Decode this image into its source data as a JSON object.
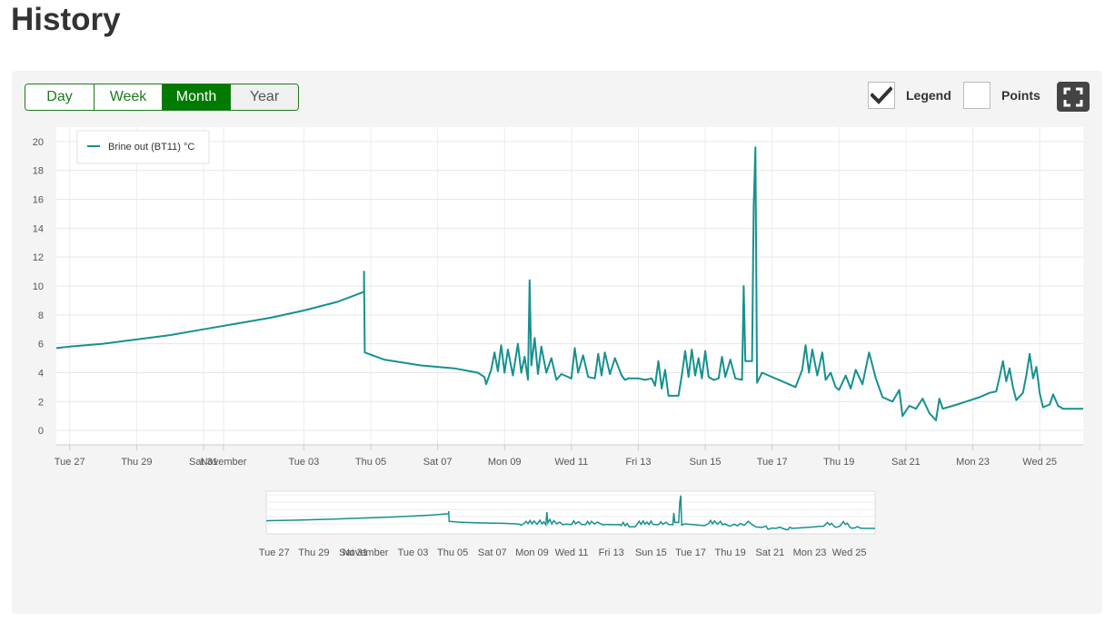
{
  "page": {
    "title": "History"
  },
  "range_buttons": [
    {
      "label": "Day"
    },
    {
      "label": "Week"
    },
    {
      "label": "Month"
    },
    {
      "label": "Year"
    }
  ],
  "active_range": "Month",
  "toggles": {
    "legend": {
      "label": "Legend",
      "checked": true
    },
    "points": {
      "label": "Points",
      "checked": false
    }
  },
  "fullscreen_icon": "fullscreen-icon",
  "colors": {
    "series": "#16918f",
    "active": "#007a00",
    "border": "#1d7a1d"
  },
  "chart_data": {
    "type": "line",
    "series": [
      {
        "name": "Brine out (BT11) °C"
      }
    ],
    "legend_position": "top-left",
    "grid": true,
    "ylim": [
      -1,
      21
    ],
    "y_ticks": [
      0,
      2,
      4,
      6,
      8,
      10,
      12,
      14,
      16,
      18,
      20
    ],
    "x_ticks": [
      "Tue 27",
      "Thu 29",
      "Sat 31",
      "November",
      "Tue 03",
      "Thu 05",
      "Sat 07",
      "Mon 09",
      "Wed 11",
      "Fri 13",
      "Sun 15",
      "Tue 17",
      "Thu 19",
      "Sat 21",
      "Mon 23",
      "Wed 25"
    ],
    "navigator_ticks": [
      "Tue 27",
      "Thu 29",
      "Sat 31",
      "November",
      "Tue 03",
      "Thu 05",
      "Sat 07",
      "Mon 09",
      "Wed 11",
      "Fri 13",
      "Sun 15",
      "Tue 17",
      "Thu 19",
      "Sat 21",
      "Mon 23",
      "Wed 25"
    ],
    "x_range_days": [
      -0.4,
      30.3
    ],
    "x_note": "days counted from Tue 27",
    "points": [
      [
        -0.4,
        5.7
      ],
      [
        0,
        5.8
      ],
      [
        1,
        6.0
      ],
      [
        2,
        6.3
      ],
      [
        3,
        6.6
      ],
      [
        4,
        7.0
      ],
      [
        5,
        7.4
      ],
      [
        6,
        7.8
      ],
      [
        7,
        8.3
      ],
      [
        8,
        8.9
      ],
      [
        8.8,
        9.6
      ],
      [
        8.8,
        11.0
      ],
      [
        8.82,
        5.4
      ],
      [
        9.4,
        4.9
      ],
      [
        10.5,
        4.5
      ],
      [
        11.5,
        4.3
      ],
      [
        12.2,
        4.0
      ],
      [
        12.4,
        3.7
      ],
      [
        12.45,
        3.2
      ],
      [
        12.6,
        4.2
      ],
      [
        12.7,
        5.4
      ],
      [
        12.8,
        4.1
      ],
      [
        12.9,
        5.9
      ],
      [
        13.0,
        4.0
      ],
      [
        13.1,
        5.6
      ],
      [
        13.25,
        3.8
      ],
      [
        13.4,
        6.0
      ],
      [
        13.5,
        4.0
      ],
      [
        13.6,
        5.1
      ],
      [
        13.7,
        3.5
      ],
      [
        13.75,
        10.4
      ],
      [
        13.8,
        4.5
      ],
      [
        13.9,
        6.4
      ],
      [
        14.0,
        3.9
      ],
      [
        14.1,
        5.8
      ],
      [
        14.25,
        4.0
      ],
      [
        14.4,
        5.0
      ],
      [
        14.55,
        3.5
      ],
      [
        14.7,
        3.9
      ],
      [
        15.0,
        3.6
      ],
      [
        15.1,
        5.7
      ],
      [
        15.2,
        4.0
      ],
      [
        15.35,
        5.2
      ],
      [
        15.5,
        3.7
      ],
      [
        15.7,
        3.6
      ],
      [
        15.8,
        5.3
      ],
      [
        15.9,
        3.8
      ],
      [
        16.0,
        5.4
      ],
      [
        16.15,
        3.9
      ],
      [
        16.3,
        5.0
      ],
      [
        16.5,
        3.8
      ],
      [
        16.6,
        3.5
      ],
      [
        16.7,
        3.6
      ],
      [
        17.0,
        3.6
      ],
      [
        17.2,
        3.5
      ],
      [
        17.4,
        3.6
      ],
      [
        17.5,
        3.1
      ],
      [
        17.6,
        4.8
      ],
      [
        17.7,
        2.9
      ],
      [
        17.8,
        4.2
      ],
      [
        17.9,
        2.4
      ],
      [
        18.2,
        2.4
      ],
      [
        18.3,
        3.8
      ],
      [
        18.4,
        5.5
      ],
      [
        18.5,
        3.7
      ],
      [
        18.6,
        5.6
      ],
      [
        18.7,
        3.8
      ],
      [
        18.8,
        5.0
      ],
      [
        18.9,
        3.6
      ],
      [
        19.0,
        5.5
      ],
      [
        19.1,
        3.7
      ],
      [
        19.25,
        3.5
      ],
      [
        19.4,
        3.6
      ],
      [
        19.5,
        5.1
      ],
      [
        19.6,
        3.7
      ],
      [
        19.75,
        4.9
      ],
      [
        19.9,
        3.6
      ],
      [
        20.1,
        3.5
      ],
      [
        20.15,
        10.0
      ],
      [
        20.2,
        4.8
      ],
      [
        20.4,
        4.8
      ],
      [
        20.45,
        15.5
      ],
      [
        20.5,
        19.6
      ],
      [
        20.55,
        3.3
      ],
      [
        20.7,
        4.0
      ],
      [
        21.5,
        3.2
      ],
      [
        21.7,
        3.0
      ],
      [
        21.9,
        4.2
      ],
      [
        22.0,
        5.9
      ],
      [
        22.1,
        4.0
      ],
      [
        22.2,
        5.6
      ],
      [
        22.35,
        3.8
      ],
      [
        22.5,
        5.4
      ],
      [
        22.6,
        3.5
      ],
      [
        22.75,
        4.0
      ],
      [
        22.9,
        3.0
      ],
      [
        23.0,
        2.8
      ],
      [
        23.2,
        3.8
      ],
      [
        23.35,
        2.9
      ],
      [
        23.5,
        4.2
      ],
      [
        23.7,
        3.2
      ],
      [
        23.9,
        5.4
      ],
      [
        24.1,
        3.6
      ],
      [
        24.3,
        2.3
      ],
      [
        24.6,
        2.0
      ],
      [
        24.8,
        2.8
      ],
      [
        24.9,
        1.0
      ],
      [
        25.1,
        1.7
      ],
      [
        25.3,
        1.5
      ],
      [
        25.5,
        2.2
      ],
      [
        25.7,
        1.2
      ],
      [
        25.9,
        0.7
      ],
      [
        26.0,
        2.2
      ],
      [
        26.1,
        1.5
      ],
      [
        26.4,
        1.7
      ],
      [
        26.8,
        2.0
      ],
      [
        27.2,
        2.3
      ],
      [
        27.5,
        2.6
      ],
      [
        27.7,
        2.7
      ],
      [
        27.8,
        3.7
      ],
      [
        27.9,
        4.8
      ],
      [
        28.0,
        3.4
      ],
      [
        28.1,
        4.3
      ],
      [
        28.2,
        3.0
      ],
      [
        28.3,
        2.1
      ],
      [
        28.5,
        2.6
      ],
      [
        28.6,
        3.8
      ],
      [
        28.7,
        5.3
      ],
      [
        28.8,
        3.6
      ],
      [
        28.9,
        4.4
      ],
      [
        29.0,
        2.6
      ],
      [
        29.1,
        1.6
      ],
      [
        29.3,
        1.8
      ],
      [
        29.4,
        2.5
      ],
      [
        29.55,
        1.7
      ],
      [
        29.7,
        1.5
      ],
      [
        30.3,
        1.5
      ]
    ]
  }
}
